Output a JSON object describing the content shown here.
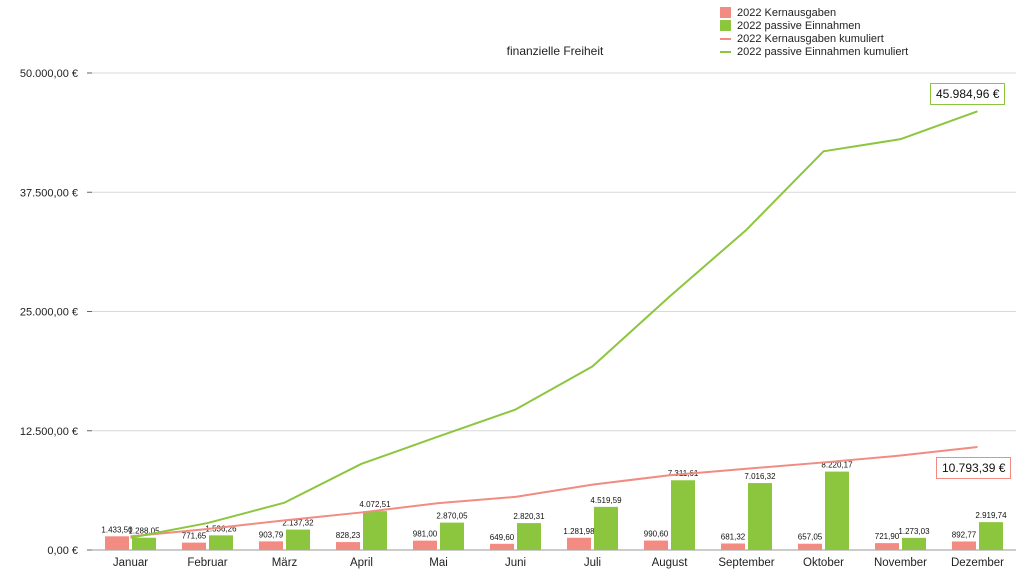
{
  "chart_data": {
    "type": "bar",
    "title": "finanzielle Freiheit",
    "xlabel": "",
    "ylabel": "",
    "ylim": [
      0,
      50000
    ],
    "yticks": [
      "0,00 €",
      "12.500,00 €",
      "25.000,00 €",
      "37.500,00 €",
      "50.000,00 €"
    ],
    "ytick_values": [
      0,
      12500,
      25000,
      37500,
      50000
    ],
    "categories": [
      "Januar",
      "Februar",
      "März",
      "April",
      "Mai",
      "Juni",
      "Juli",
      "August",
      "September",
      "Oktober",
      "November",
      "Dezember"
    ],
    "grid": true,
    "legend_position": "top-right",
    "series": [
      {
        "name": "2022 Kernausgaben",
        "kind": "bar",
        "color": "#f28b82",
        "values": [
          1433.5,
          771.65,
          903.79,
          828.23,
          981.0,
          649.6,
          1281.98,
          990.6,
          681.32,
          657.05,
          721.9,
          892.77
        ],
        "labels": [
          "1.433,50",
          "771,65",
          "903,79",
          "828,23",
          "981,00",
          "649,60",
          "1.281,98",
          "990,60",
          "681,32",
          "657,05",
          "721,90",
          "892,77"
        ]
      },
      {
        "name": "2022 passive Einnahmen",
        "kind": "bar",
        "color": "#8cc63f",
        "values": [
          1288.05,
          1536.26,
          2137.32,
          4072.51,
          2870.05,
          2820.31,
          4519.59,
          7311.61,
          7016.32,
          8220.17,
          1273.03,
          2919.74
        ],
        "labels": [
          "1.288,05",
          "1.536,26",
          "2.137,32",
          "4.072,51",
          "2.870,05",
          "2.820,31",
          "4.519,59",
          "7.311,61",
          "7.016,32",
          "8.220,17",
          "1.273,03",
          "2.919,74"
        ]
      },
      {
        "name": "2022 Kernausgaben kumuliert",
        "kind": "line",
        "color": "#f28b82",
        "values": [
          1433.5,
          2205.15,
          3108.94,
          3937.17,
          4918.17,
          5567.77,
          6849.75,
          7840.35,
          8521.67,
          9178.72,
          9900.62,
          10793.39
        ]
      },
      {
        "name": "2022 passive Einnahmen kumuliert",
        "kind": "line",
        "color": "#8cc63f",
        "values": [
          1288.05,
          2824.31,
          4961.63,
          9034.14,
          11904.19,
          14724.5,
          19244.09,
          26555.7,
          33572.02,
          41792.19,
          43065.22,
          45984.96
        ]
      }
    ],
    "annotations": [
      {
        "series": 3,
        "text": "45.984,96 €",
        "color": "#8cc63f"
      },
      {
        "series": 2,
        "text": "10.793,39 €",
        "color": "#f28b82"
      }
    ]
  }
}
